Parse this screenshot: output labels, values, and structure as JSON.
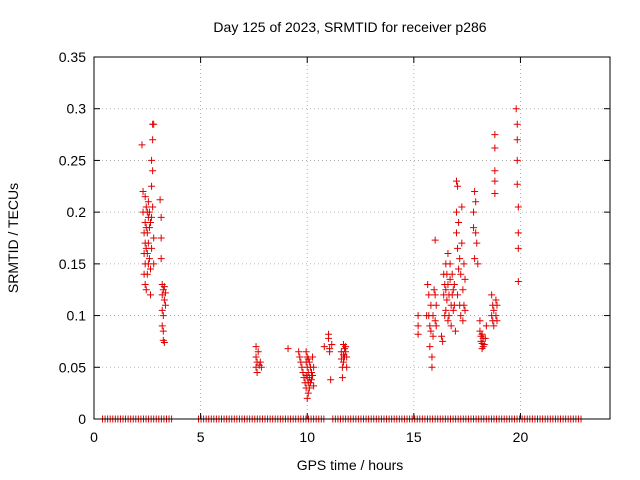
{
  "chart_data": {
    "type": "scatter",
    "title": "Day 125 of 2023, SRMTID for receiver p286",
    "xlabel": "GPS time / hours",
    "ylabel": "SRMTID / TECUs",
    "xlim": [
      0,
      24.2
    ],
    "ylim": [
      0,
      0.35
    ],
    "x_ticks": [
      0,
      5,
      10,
      15,
      20
    ],
    "x_tick_labels": [
      "0",
      "5",
      "10",
      "15",
      "20"
    ],
    "y_ticks": [
      0,
      0.05,
      0.1,
      0.15,
      0.2,
      0.25,
      0.3,
      0.35
    ],
    "y_tick_labels": [
      "0",
      "0.05",
      "0.1",
      "0.15",
      "0.2",
      "0.25",
      "0.3",
      "0.35"
    ],
    "grid": true,
    "marker": "+",
    "series": [
      {
        "name": "SRMTID",
        "color": "#e00000",
        "points": [
          [
            2.25,
            0.265
          ],
          [
            2.3,
            0.22
          ],
          [
            2.3,
            0.2
          ],
          [
            2.35,
            0.18
          ],
          [
            2.35,
            0.16
          ],
          [
            2.35,
            0.14
          ],
          [
            2.4,
            0.215
          ],
          [
            2.4,
            0.19
          ],
          [
            2.4,
            0.17
          ],
          [
            2.4,
            0.15
          ],
          [
            2.4,
            0.13
          ],
          [
            2.45,
            0.205
          ],
          [
            2.45,
            0.185
          ],
          [
            2.45,
            0.165
          ],
          [
            2.45,
            0.125
          ],
          [
            2.5,
            0.2
          ],
          [
            2.5,
            0.18
          ],
          [
            2.5,
            0.16
          ],
          [
            2.5,
            0.14
          ],
          [
            2.55,
            0.21
          ],
          [
            2.55,
            0.195
          ],
          [
            2.55,
            0.17
          ],
          [
            2.55,
            0.15
          ],
          [
            2.6,
            0.2
          ],
          [
            2.6,
            0.185
          ],
          [
            2.6,
            0.155
          ],
          [
            2.65,
            0.19
          ],
          [
            2.65,
            0.145
          ],
          [
            2.65,
            0.12
          ],
          [
            2.7,
            0.25
          ],
          [
            2.7,
            0.225
          ],
          [
            2.7,
            0.195
          ],
          [
            2.7,
            0.165
          ],
          [
            2.75,
            0.285
          ],
          [
            2.75,
            0.27
          ],
          [
            2.75,
            0.24
          ],
          [
            2.75,
            0.205
          ],
          [
            2.8,
            0.285
          ],
          [
            2.8,
            0.175
          ],
          [
            2.8,
            0.15
          ],
          [
            3.1,
            0.212
          ],
          [
            3.15,
            0.195
          ],
          [
            3.15,
            0.175
          ],
          [
            3.15,
            0.155
          ],
          [
            3.2,
            0.13
          ],
          [
            3.2,
            0.12
          ],
          [
            3.2,
            0.105
          ],
          [
            3.2,
            0.09
          ],
          [
            3.25,
            0.125
          ],
          [
            3.25,
            0.1
          ],
          [
            3.25,
            0.085
          ],
          [
            3.25,
            0.076
          ],
          [
            3.3,
            0.128
          ],
          [
            3.3,
            0.115
          ],
          [
            3.3,
            0.074
          ],
          [
            3.35,
            0.122
          ],
          [
            3.35,
            0.11
          ],
          [
            7.6,
            0.07
          ],
          [
            7.6,
            0.06
          ],
          [
            7.6,
            0.05
          ],
          [
            7.65,
            0.055
          ],
          [
            7.65,
            0.045
          ],
          [
            7.7,
            0.065
          ],
          [
            7.75,
            0.052
          ],
          [
            7.8,
            0.055
          ],
          [
            7.85,
            0.05
          ],
          [
            9.1,
            0.068
          ],
          [
            9.6,
            0.065
          ],
          [
            9.65,
            0.06
          ],
          [
            9.7,
            0.055
          ],
          [
            9.75,
            0.05
          ],
          [
            9.8,
            0.045
          ],
          [
            9.85,
            0.04
          ],
          [
            9.9,
            0.035
          ],
          [
            9.95,
            0.065
          ],
          [
            9.95,
            0.055
          ],
          [
            9.95,
            0.042
          ],
          [
            9.95,
            0.03
          ],
          [
            10.0,
            0.06
          ],
          [
            10.0,
            0.05
          ],
          [
            10.0,
            0.04
          ],
          [
            10.0,
            0.02
          ],
          [
            10.05,
            0.058
          ],
          [
            10.05,
            0.045
          ],
          [
            10.05,
            0.035
          ],
          [
            10.05,
            0.025
          ],
          [
            10.1,
            0.055
          ],
          [
            10.1,
            0.04
          ],
          [
            10.1,
            0.03
          ],
          [
            10.15,
            0.05
          ],
          [
            10.15,
            0.035
          ],
          [
            10.2,
            0.045
          ],
          [
            10.2,
            0.038
          ],
          [
            10.25,
            0.06
          ],
          [
            10.25,
            0.042
          ],
          [
            10.3,
            0.05
          ],
          [
            10.3,
            0.032
          ],
          [
            10.8,
            0.07
          ],
          [
            11.0,
            0.082
          ],
          [
            11.0,
            0.078
          ],
          [
            11.05,
            0.068
          ],
          [
            11.05,
            0.065
          ],
          [
            11.1,
            0.038
          ],
          [
            11.15,
            0.072
          ],
          [
            11.6,
            0.065
          ],
          [
            11.6,
            0.058
          ],
          [
            11.65,
            0.05
          ],
          [
            11.65,
            0.04
          ],
          [
            11.7,
            0.072
          ],
          [
            11.7,
            0.062
          ],
          [
            11.7,
            0.055
          ],
          [
            11.75,
            0.068
          ],
          [
            11.75,
            0.06
          ],
          [
            11.8,
            0.07
          ],
          [
            11.8,
            0.065
          ],
          [
            11.85,
            0.06
          ],
          [
            11.85,
            0.05
          ],
          [
            15.2,
            0.1
          ],
          [
            15.2,
            0.09
          ],
          [
            15.2,
            0.082
          ],
          [
            15.6,
            0.1
          ],
          [
            15.65,
            0.13
          ],
          [
            15.7,
            0.12
          ],
          [
            15.7,
            0.1
          ],
          [
            15.75,
            0.09
          ],
          [
            15.75,
            0.07
          ],
          [
            15.8,
            0.085
          ],
          [
            15.8,
            0.11
          ],
          [
            15.85,
            0.06
          ],
          [
            15.85,
            0.05
          ],
          [
            15.9,
            0.08
          ],
          [
            15.9,
            0.1
          ],
          [
            15.95,
            0.125
          ],
          [
            16.0,
            0.173
          ],
          [
            16.0,
            0.12
          ],
          [
            16.0,
            0.095
          ],
          [
            16.05,
            0.11
          ],
          [
            16.05,
            0.09
          ],
          [
            16.3,
            0.08
          ],
          [
            16.35,
            0.075
          ],
          [
            16.4,
            0.14
          ],
          [
            16.4,
            0.12
          ],
          [
            16.45,
            0.13
          ],
          [
            16.45,
            0.1
          ],
          [
            16.5,
            0.15
          ],
          [
            16.5,
            0.125
          ],
          [
            16.5,
            0.105
          ],
          [
            16.55,
            0.14
          ],
          [
            16.55,
            0.115
          ],
          [
            16.6,
            0.16
          ],
          [
            16.6,
            0.13
          ],
          [
            16.6,
            0.095
          ],
          [
            16.65,
            0.12
          ],
          [
            16.65,
            0.1
          ],
          [
            16.7,
            0.15
          ],
          [
            16.7,
            0.135
          ],
          [
            16.75,
            0.11
          ],
          [
            16.75,
            0.09
          ],
          [
            16.8,
            0.14
          ],
          [
            16.8,
            0.12
          ],
          [
            16.85,
            0.125
          ],
          [
            16.85,
            0.105
          ],
          [
            16.9,
            0.13
          ],
          [
            16.9,
            0.11
          ],
          [
            16.95,
            0.085
          ],
          [
            17.0,
            0.23
          ],
          [
            17.0,
            0.2
          ],
          [
            17.0,
            0.18
          ],
          [
            17.05,
            0.225
          ],
          [
            17.05,
            0.165
          ],
          [
            17.05,
            0.12
          ],
          [
            17.1,
            0.19
          ],
          [
            17.1,
            0.145
          ],
          [
            17.15,
            0.155
          ],
          [
            17.15,
            0.11
          ],
          [
            17.2,
            0.1
          ],
          [
            17.2,
            0.14
          ],
          [
            17.25,
            0.205
          ],
          [
            17.25,
            0.17
          ],
          [
            17.3,
            0.125
          ],
          [
            17.3,
            0.095
          ],
          [
            17.35,
            0.15
          ],
          [
            17.35,
            0.11
          ],
          [
            17.4,
            0.135
          ],
          [
            17.4,
            0.105
          ],
          [
            17.8,
            0.2
          ],
          [
            17.8,
            0.185
          ],
          [
            17.85,
            0.155
          ],
          [
            17.85,
            0.22
          ],
          [
            17.9,
            0.21
          ],
          [
            17.9,
            0.18
          ],
          [
            17.95,
            0.17
          ],
          [
            18.0,
            0.15
          ],
          [
            18.1,
            0.095
          ],
          [
            18.1,
            0.085
          ],
          [
            18.15,
            0.08
          ],
          [
            18.15,
            0.075
          ],
          [
            18.2,
            0.082
          ],
          [
            18.2,
            0.073
          ],
          [
            18.2,
            0.068
          ],
          [
            18.25,
            0.078
          ],
          [
            18.25,
            0.07
          ],
          [
            18.3,
            0.072
          ],
          [
            18.35,
            0.078
          ],
          [
            18.4,
            0.09
          ],
          [
            18.65,
            0.12
          ],
          [
            18.65,
            0.1
          ],
          [
            18.7,
            0.11
          ],
          [
            18.7,
            0.095
          ],
          [
            18.75,
            0.105
          ],
          [
            18.75,
            0.09
          ],
          [
            18.8,
            0.275
          ],
          [
            18.8,
            0.262
          ],
          [
            18.8,
            0.24
          ],
          [
            18.8,
            0.23
          ],
          [
            18.8,
            0.218
          ],
          [
            18.85,
            0.115
          ],
          [
            18.85,
            0.1
          ],
          [
            18.9,
            0.11
          ],
          [
            18.9,
            0.095
          ],
          [
            19.8,
            0.3
          ],
          [
            19.85,
            0.285
          ],
          [
            19.85,
            0.27
          ],
          [
            19.85,
            0.25
          ],
          [
            19.85,
            0.227
          ],
          [
            19.9,
            0.205
          ],
          [
            19.9,
            0.18
          ],
          [
            19.9,
            0.165
          ],
          [
            19.9,
            0.133
          ]
        ]
      }
    ],
    "baseline_zero_ranges": [
      [
        0.4,
        3.7
      ],
      [
        4.9,
        10.8
      ],
      [
        11.2,
        22.9
      ]
    ]
  }
}
